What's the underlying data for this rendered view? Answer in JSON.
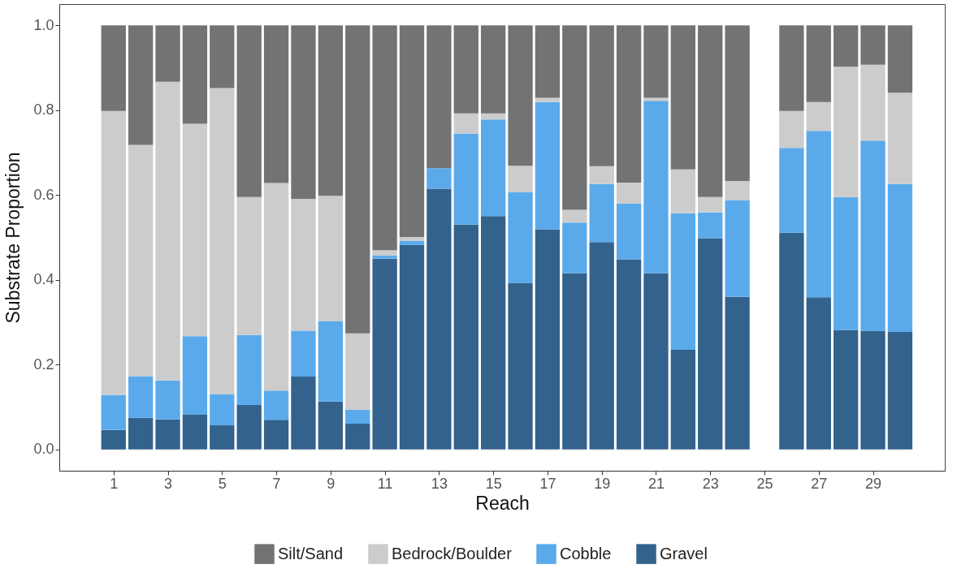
{
  "chart_data": {
    "type": "bar",
    "stacked": true,
    "xlabel": "Reach",
    "ylabel": "Substrate Proportion",
    "x": [
      1,
      2,
      3,
      4,
      5,
      6,
      7,
      8,
      9,
      10,
      11,
      12,
      13,
      14,
      15,
      16,
      17,
      18,
      19,
      20,
      21,
      22,
      23,
      24,
      26,
      27,
      28,
      29,
      30
    ],
    "series": [
      {
        "name": "Gravel",
        "color": "#33628c",
        "values": [
          0.046,
          0.075,
          0.071,
          0.082,
          0.057,
          0.105,
          0.07,
          0.172,
          0.113,
          0.061,
          0.45,
          0.482,
          0.615,
          0.53,
          0.55,
          0.393,
          0.519,
          0.416,
          0.489,
          0.448,
          0.416,
          0.235,
          0.498,
          0.36,
          0.511,
          0.359,
          0.282,
          0.28,
          0.277
        ]
      },
      {
        "name": "Cobble",
        "color": "#5aaaeb",
        "values": [
          0.083,
          0.098,
          0.092,
          0.185,
          0.074,
          0.165,
          0.069,
          0.108,
          0.19,
          0.033,
          0.007,
          0.01,
          0.048,
          0.215,
          0.228,
          0.214,
          0.3,
          0.119,
          0.137,
          0.132,
          0.406,
          0.322,
          0.061,
          0.228,
          0.2,
          0.392,
          0.313,
          0.448,
          0.349
        ]
      },
      {
        "name": "Bedrock/Boulder",
        "color": "#cccccc",
        "values": [
          0.669,
          0.545,
          0.704,
          0.501,
          0.721,
          0.325,
          0.489,
          0.311,
          0.295,
          0.18,
          0.013,
          0.009,
          0,
          0.047,
          0.014,
          0.062,
          0.01,
          0.03,
          0.042,
          0.049,
          0.007,
          0.103,
          0.036,
          0.045,
          0.087,
          0.068,
          0.307,
          0.179,
          0.215
        ]
      },
      {
        "name": "Silt/Sand",
        "color": "#737373",
        "values": [
          0.202,
          0.282,
          0.133,
          0.232,
          0.148,
          0.405,
          0.372,
          0.409,
          0.402,
          0.726,
          0.53,
          0.499,
          0.337,
          0.208,
          0.208,
          0.331,
          0.171,
          0.435,
          0.332,
          0.371,
          0.171,
          0.34,
          0.405,
          0.367,
          0.202,
          0.181,
          0.098,
          0.093,
          0.159
        ]
      }
    ],
    "xlim": [
      -0.85,
      31.5
    ],
    "xticks": [
      1,
      3,
      5,
      7,
      9,
      11,
      13,
      15,
      17,
      19,
      21,
      23,
      25,
      27,
      29
    ],
    "ylim": [
      -0.05,
      1.05
    ],
    "yticks": [
      {
        "value": 0,
        "label": "0.0"
      },
      {
        "value": 0.2,
        "label": "0.2"
      },
      {
        "value": 0.4,
        "label": "0.4"
      },
      {
        "value": 0.6,
        "label": "0.6"
      },
      {
        "value": 0.8,
        "label": "0.8"
      },
      {
        "value": 1,
        "label": "1.0"
      }
    ],
    "grid": false,
    "legend": "bottom"
  }
}
